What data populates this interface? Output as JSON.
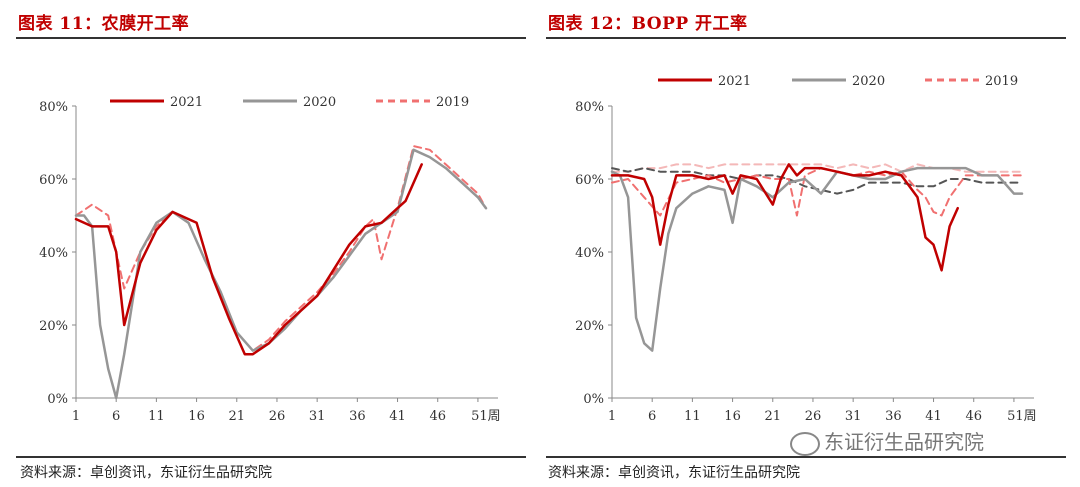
{
  "colors": {
    "c2021": "#c00000",
    "c2020": "#969696",
    "c2019": "#f07070",
    "title": "#c00000"
  },
  "panels": [
    {
      "title": "图表 11：农膜开工率",
      "source": "资料来源：卓创资讯，东证衍生品研究院",
      "chart_data": {
        "type": "line",
        "title": "图表 11：农膜开工率",
        "xlabel": "周",
        "ylabel": "",
        "x_ticks": [
          "1",
          "6",
          "11",
          "16",
          "21",
          "26",
          "31",
          "36",
          "41",
          "46",
          "51周"
        ],
        "x_tick_values": [
          1,
          6,
          11,
          16,
          21,
          26,
          31,
          36,
          41,
          46,
          51
        ],
        "y_ticks": [
          "0%",
          "20%",
          "40%",
          "60%",
          "80%"
        ],
        "y_tick_values": [
          0,
          20,
          40,
          60,
          80
        ],
        "xlim": [
          1,
          53
        ],
        "ylim": [
          0,
          80
        ],
        "legend_position": "top",
        "series": [
          {
            "name": "2021",
            "style": "solid",
            "color": "#c00000",
            "x": [
              1,
              3,
              5,
              6,
              7,
              9,
              11,
              13,
              15,
              16,
              18,
              20,
              22,
              23,
              25,
              27,
              29,
              31,
              33,
              35,
              37,
              39,
              41,
              42,
              44
            ],
            "y": [
              49,
              47,
              47,
              40,
              20,
              37,
              46,
              51,
              49,
              48,
              33,
              22,
              12,
              12,
              15,
              20,
              24,
              28,
              35,
              42,
              47,
              48,
              52,
              54,
              64
            ]
          },
          {
            "name": "2020",
            "style": "solid",
            "color": "#969696",
            "x": [
              1,
              2,
              3,
              4,
              5,
              6,
              7,
              9,
              11,
              13,
              15,
              17,
              19,
              21,
              23,
              25,
              27,
              29,
              31,
              33,
              35,
              37,
              39,
              41,
              43,
              45,
              47,
              49,
              51,
              52
            ],
            "y": [
              50,
              50,
              47,
              20,
              8,
              0,
              12,
              40,
              48,
              51,
              48,
              38,
              29,
              18,
              13,
              15,
              19,
              24,
              28,
              33,
              39,
              45,
              48,
              51,
              68,
              66,
              63,
              59,
              55,
              52
            ]
          },
          {
            "name": "2019",
            "style": "dashed",
            "color": "#f07070",
            "x": [
              1,
              3,
              5,
              7,
              9,
              11,
              13,
              15,
              17,
              19,
              21,
              23,
              25,
              27,
              29,
              31,
              33,
              35,
              37,
              38,
              39,
              41,
              43,
              45,
              47,
              49,
              51,
              52
            ],
            "y": [
              50,
              53,
              50,
              30,
              40,
              47,
              51,
              48,
              38,
              29,
              18,
              13,
              16,
              21,
              25,
              29,
              34,
              40,
              47,
              49,
              38,
              52,
              69,
              68,
              64,
              60,
              56,
              52
            ]
          }
        ]
      }
    },
    {
      "title": "图表 12：BOPP 开工率",
      "source": "资料来源：卓创资讯，东证衍生品研究院",
      "chart_data": {
        "type": "line",
        "title": "图表 12：BOPP 开工率",
        "xlabel": "周",
        "ylabel": "",
        "x_ticks": [
          "1",
          "6",
          "11",
          "16",
          "21",
          "26",
          "31",
          "36",
          "41",
          "46",
          "51周"
        ],
        "x_tick_values": [
          1,
          6,
          11,
          16,
          21,
          26,
          31,
          36,
          41,
          46,
          51
        ],
        "y_ticks": [
          "0%",
          "20%",
          "40%",
          "60%",
          "80%"
        ],
        "y_tick_values": [
          0,
          20,
          40,
          60,
          80
        ],
        "xlim": [
          1,
          53
        ],
        "ylim": [
          0,
          80
        ],
        "legend_position": "top",
        "series": [
          {
            "name": "2021",
            "style": "solid",
            "color": "#c00000",
            "x": [
              1,
              3,
              5,
              6,
              7,
              8,
              9,
              11,
              13,
              15,
              16,
              17,
              19,
              21,
              22,
              23,
              24,
              25,
              27,
              29,
              31,
              33,
              35,
              37,
              39,
              40,
              41,
              42,
              43,
              44
            ],
            "y": [
              61,
              61,
              60,
              55,
              42,
              53,
              61,
              61,
              60,
              61,
              56,
              61,
              60,
              53,
              60,
              64,
              61,
              63,
              63,
              62,
              61,
              61,
              62,
              61,
              55,
              44,
              42,
              35,
              47,
              52
            ]
          },
          {
            "name": "2020",
            "style": "solid",
            "color": "#969696",
            "x": [
              1,
              2,
              3,
              4,
              5,
              6,
              7,
              8,
              9,
              11,
              13,
              15,
              16,
              17,
              19,
              21,
              23,
              25,
              26,
              27,
              29,
              31,
              33,
              35,
              37,
              39,
              41,
              43,
              45,
              47,
              49,
              51,
              52
            ],
            "y": [
              62,
              61,
              55,
              22,
              15,
              13,
              30,
              45,
              52,
              56,
              58,
              57,
              48,
              60,
              58,
              55,
              59,
              60,
              58,
              56,
              62,
              61,
              60,
              60,
              62,
              63,
              63,
              63,
              63,
              61,
              61,
              56,
              56
            ]
          },
          {
            "name": "2019",
            "style": "dashed",
            "color": "#f07070",
            "x": [
              1,
              3,
              5,
              7,
              9,
              11,
              13,
              15,
              17,
              19,
              21,
              23,
              24,
              25,
              27,
              29,
              31,
              33,
              35,
              37,
              39,
              40,
              41,
              42,
              43,
              45,
              47,
              49,
              51,
              52
            ],
            "y": [
              59,
              60,
              55,
              50,
              59,
              60,
              61,
              59,
              60,
              61,
              60,
              60,
              50,
              61,
              63,
              62,
              61,
              62,
              61,
              62,
              57,
              55,
              51,
              50,
              55,
              61,
              61,
              61,
              61,
              61
            ]
          },
          {
            "name": "",
            "style": "dashed",
            "color": "#555555",
            "x": [
              1,
              3,
              5,
              7,
              9,
              11,
              13,
              15,
              17,
              19,
              21,
              23,
              25,
              27,
              29,
              31,
              33,
              35,
              37,
              39,
              41,
              43,
              45,
              47,
              49,
              51,
              52
            ],
            "y": [
              63,
              62,
              63,
              62,
              62,
              62,
              61,
              61,
              60,
              61,
              61,
              60,
              58,
              57,
              56,
              57,
              59,
              59,
              59,
              58,
              58,
              60,
              60,
              59,
              59,
              59,
              59
            ]
          },
          {
            "name": "",
            "style": "dashed",
            "color": "#f4b8b8",
            "x": [
              1,
              3,
              5,
              7,
              9,
              11,
              13,
              15,
              17,
              19,
              21,
              23,
              25,
              27,
              29,
              31,
              33,
              35,
              37,
              39,
              41,
              43,
              45,
              47,
              49,
              51,
              52
            ],
            "y": [
              62,
              62,
              63,
              63,
              64,
              64,
              63,
              64,
              64,
              64,
              64,
              64,
              64,
              64,
              63,
              64,
              63,
              64,
              62,
              64,
              63,
              63,
              62,
              62,
              62,
              62,
              62
            ]
          }
        ]
      }
    }
  ],
  "watermark": {
    "text": "东证衍生品研究院",
    "icon": "wechat-icon"
  }
}
